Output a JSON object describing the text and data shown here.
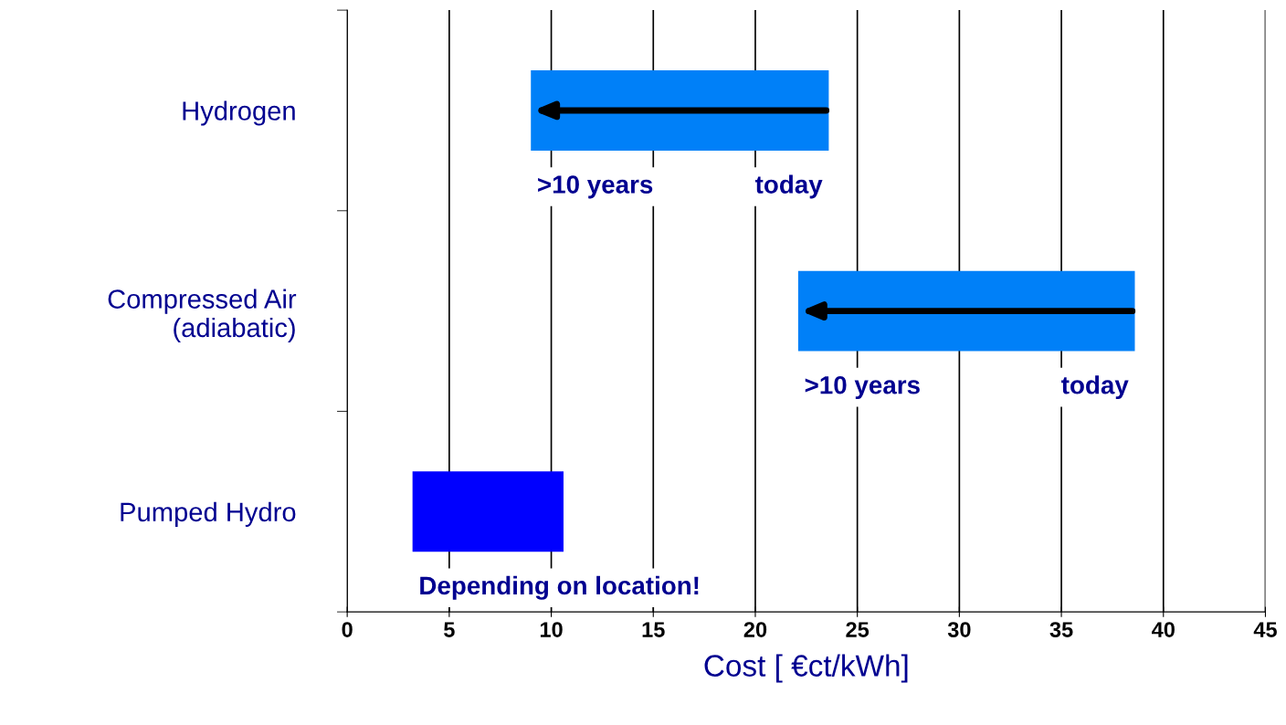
{
  "chart_data": {
    "type": "bar",
    "orientation": "horizontal",
    "xlabel": "Cost [ €ct/kWh]",
    "categories": [
      "Hydrogen",
      "Compressed Air\n(adiabatic)",
      "Pumped Hydro"
    ],
    "base": [
      9,
      22.1,
      3.2
    ],
    "values": [
      14.6,
      16.5,
      7.4
    ],
    "colors": [
      "#0080f8",
      "#0080f8",
      "#0000ff"
    ],
    "xlim": [
      0,
      45
    ],
    "xticks": [
      0,
      5,
      10,
      15,
      20,
      25,
      30,
      35,
      40,
      45
    ],
    "grid": "x",
    "annotations": [
      {
        "text": ">10 years",
        "x": 9,
        "y": "Hydrogen"
      },
      {
        "text": "today",
        "x": 23.6,
        "y": "Hydrogen"
      },
      {
        "text": ">10 years",
        "x": 22.1,
        "y": "Compressed Air\n(adiabatic)"
      },
      {
        "text": "today",
        "x": 38.6,
        "y": "Compressed Air\n(adiabatic)"
      },
      {
        "text": "Depending on location!",
        "x": 3.2,
        "y": "Pumped Hydro"
      }
    ]
  }
}
